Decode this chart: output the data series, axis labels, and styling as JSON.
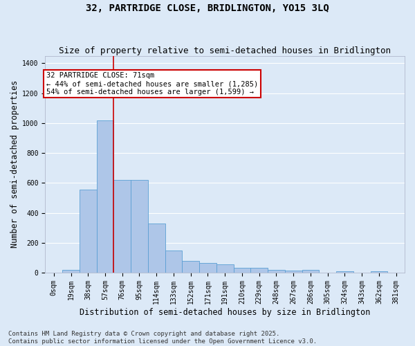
{
  "title_line1": "32, PARTRIDGE CLOSE, BRIDLINGTON, YO15 3LQ",
  "title_line2": "Size of property relative to semi-detached houses in Bridlington",
  "xlabel": "Distribution of semi-detached houses by size in Bridlington",
  "ylabel": "Number of semi-detached properties",
  "bar_labels": [
    "0sqm",
    "19sqm",
    "38sqm",
    "57sqm",
    "76sqm",
    "95sqm",
    "114sqm",
    "133sqm",
    "152sqm",
    "171sqm",
    "191sqm",
    "210sqm",
    "229sqm",
    "248sqm",
    "267sqm",
    "286sqm",
    "305sqm",
    "324sqm",
    "343sqm",
    "362sqm",
    "381sqm"
  ],
  "bar_values": [
    0,
    20,
    555,
    1020,
    620,
    620,
    330,
    150,
    80,
    65,
    55,
    30,
    30,
    20,
    15,
    20,
    0,
    8,
    0,
    10,
    0
  ],
  "bar_color": "#aec6e8",
  "bar_edge_color": "#5a9fd4",
  "background_color": "#dce9f7",
  "grid_color": "#ffffff",
  "vline_x": 3.5,
  "annotation_text": "32 PARTRIDGE CLOSE: 71sqm\n← 44% of semi-detached houses are smaller (1,285)\n54% of semi-detached houses are larger (1,599) →",
  "annotation_box_color": "#ffffff",
  "annotation_border_color": "#cc0000",
  "vline_color": "#cc0000",
  "ylim": [
    0,
    1450
  ],
  "yticks": [
    0,
    200,
    400,
    600,
    800,
    1000,
    1200,
    1400
  ],
  "footer_line1": "Contains HM Land Registry data © Crown copyright and database right 2025.",
  "footer_line2": "Contains public sector information licensed under the Open Government Licence v3.0.",
  "title_fontsize": 10,
  "subtitle_fontsize": 9,
  "axis_label_fontsize": 8.5,
  "tick_fontsize": 7,
  "annotation_fontsize": 7.5,
  "footer_fontsize": 6.5
}
